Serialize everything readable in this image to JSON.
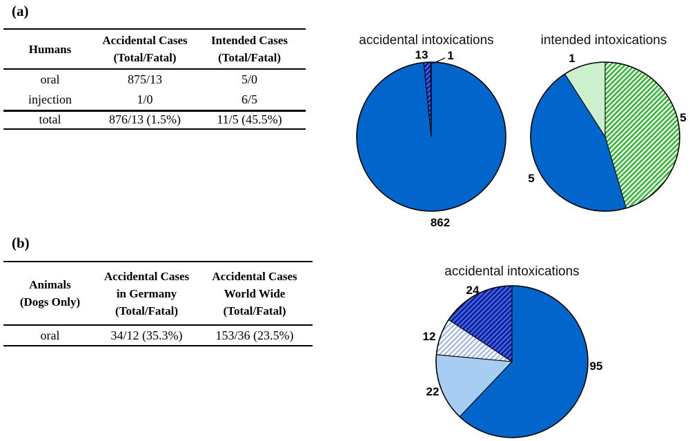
{
  "panel_a_label": "(a)",
  "panel_b_label": "(b)",
  "table_a": {
    "col1_header": "Humans",
    "col2_header": [
      "Accidental Cases",
      "(Total/Fatal)"
    ],
    "col3_header": [
      "Intended Cases",
      "(Total/Fatal)"
    ],
    "rows": [
      {
        "c1": "oral",
        "c2": "875/13",
        "c3": "5/0"
      },
      {
        "c1": "injection",
        "c2": "1/0",
        "c3": "6/5"
      }
    ],
    "total_row": {
      "c1": "total",
      "c2": "876/13 (1.5%)",
      "c3": "11/5 (45.5%)"
    }
  },
  "table_b": {
    "col1_header": [
      "Animals",
      "(Dogs Only)"
    ],
    "col2_header": [
      "Accidental Cases",
      "in Germany",
      "(Total/Fatal)"
    ],
    "col3_header": [
      "Accidental Cases",
      "World Wide",
      "(Total/Fatal)"
    ],
    "rows": [
      {
        "c1": "oral",
        "c2": "34/12 (35.3%)",
        "c3": "153/36 (23.5%)"
      }
    ]
  },
  "chart_data": [
    {
      "type": "pie",
      "title": "accidental intoxications",
      "total": 876,
      "start": "12-oclock",
      "direction": "clockwise",
      "legend": "none",
      "slices": [
        {
          "label": "862",
          "value": 862,
          "fill": "blue"
        },
        {
          "label": "13",
          "value": 13,
          "fill": "hatch_navy"
        },
        {
          "label": "1",
          "value": 1,
          "fill": "light_green"
        }
      ]
    },
    {
      "type": "pie",
      "title": "intended intoxications",
      "total": 11,
      "start": "12-oclock",
      "direction": "clockwise",
      "legend": "none",
      "slices": [
        {
          "label": "5",
          "value": 5,
          "fill": "hatch_green"
        },
        {
          "label": "5",
          "value": 5,
          "fill": "blue"
        },
        {
          "label": "1",
          "value": 1,
          "fill": "light_green"
        }
      ]
    },
    {
      "type": "pie",
      "title": "accidental intoxications",
      "total": 153,
      "start": "12-oclock",
      "direction": "clockwise",
      "legend": "none",
      "slices": [
        {
          "label": "95",
          "value": 95,
          "fill": "blue"
        },
        {
          "label": "22",
          "value": 22,
          "fill": "light_blue"
        },
        {
          "label": "12",
          "value": 12,
          "fill": "hatch_lightblue"
        },
        {
          "label": "24",
          "value": 24,
          "fill": "hatch_navy"
        }
      ]
    }
  ],
  "colors": {
    "blue": "#0066CC",
    "light_blue": "#A6CEF2",
    "light_green": "#CCF0CC",
    "hatch_navy_bg": "#0D1C9E",
    "hatch_navy_stripe": "#4668DE",
    "hatch_green_bg": "#FFFFFF",
    "hatch_green_stripe": "#2EB82E",
    "hatch_lightblue_bg": "#FFFFFF",
    "hatch_lightblue_stripe": "#9DB3E8",
    "outline": "#000000"
  }
}
